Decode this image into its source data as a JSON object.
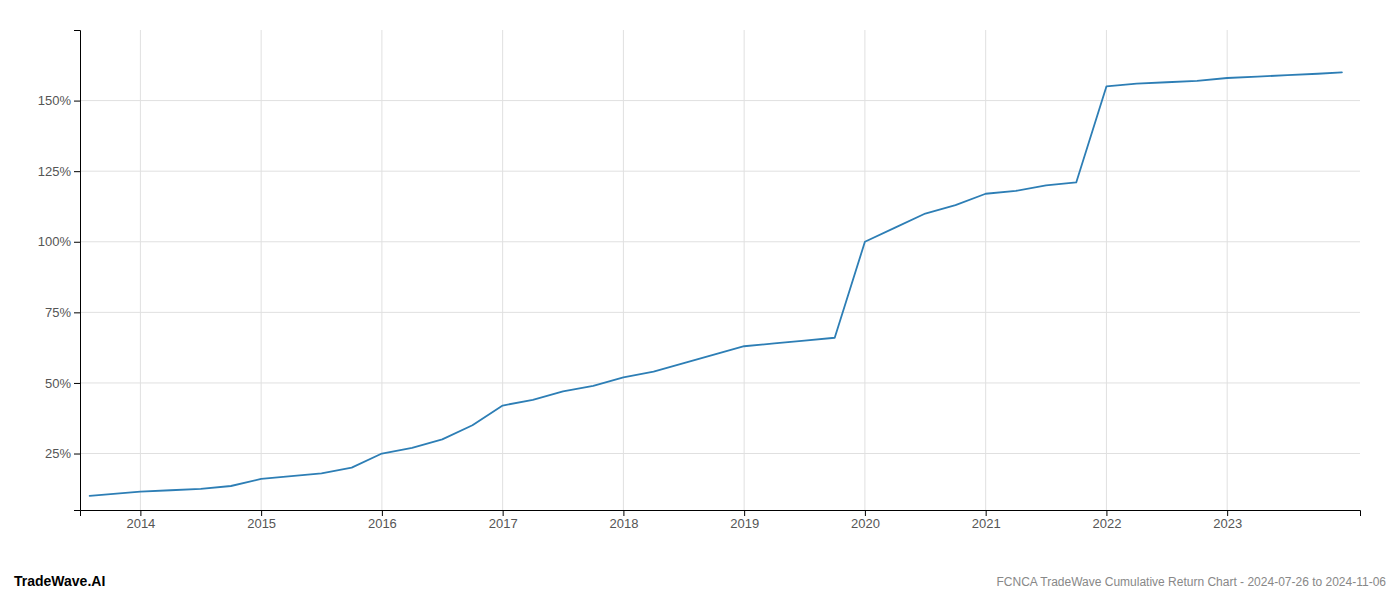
{
  "chart_data": {
    "type": "line",
    "title": "FCNCA TradeWave Cumulative Return Chart - 2024-07-26 to 2024-11-06",
    "annotations": [
      "TradeWave.AI"
    ],
    "x": [
      2013.58,
      2014.0,
      2014.25,
      2014.5,
      2014.75,
      2015.0,
      2015.25,
      2015.5,
      2015.75,
      2016.0,
      2016.25,
      2016.5,
      2016.75,
      2017.0,
      2017.25,
      2017.5,
      2017.75,
      2018.0,
      2018.25,
      2018.5,
      2018.75,
      2019.0,
      2019.25,
      2019.5,
      2019.75,
      2020.0,
      2020.25,
      2020.5,
      2020.75,
      2021.0,
      2021.25,
      2021.5,
      2021.75,
      2022.0,
      2022.25,
      2022.5,
      2022.75,
      2023.0,
      2023.25,
      2023.5,
      2023.75,
      2023.95
    ],
    "values": [
      10,
      11.5,
      12,
      12.5,
      13.5,
      16,
      17,
      18,
      20,
      25,
      27,
      30,
      35,
      42,
      44,
      47,
      49,
      52,
      54,
      57,
      60,
      63,
      64,
      65,
      66,
      100,
      105,
      110,
      113,
      117,
      118,
      120,
      121,
      155,
      156,
      156.5,
      157,
      158,
      158.5,
      159,
      159.5,
      160
    ],
    "color": "#2d7eb5",
    "xlim": [
      2013.5,
      2024.1
    ],
    "ylim": [
      5,
      175
    ],
    "xticks": [
      2014,
      2015,
      2016,
      2017,
      2018,
      2019,
      2020,
      2021,
      2022,
      2023
    ],
    "yticks": [
      {
        "value": 25,
        "label": "25%"
      },
      {
        "value": 50,
        "label": "50%"
      },
      {
        "value": 75,
        "label": "75%"
      },
      {
        "value": 100,
        "label": "100%"
      },
      {
        "value": 125,
        "label": "125%"
      },
      {
        "value": 150,
        "label": "150%"
      }
    ],
    "grid": true
  }
}
